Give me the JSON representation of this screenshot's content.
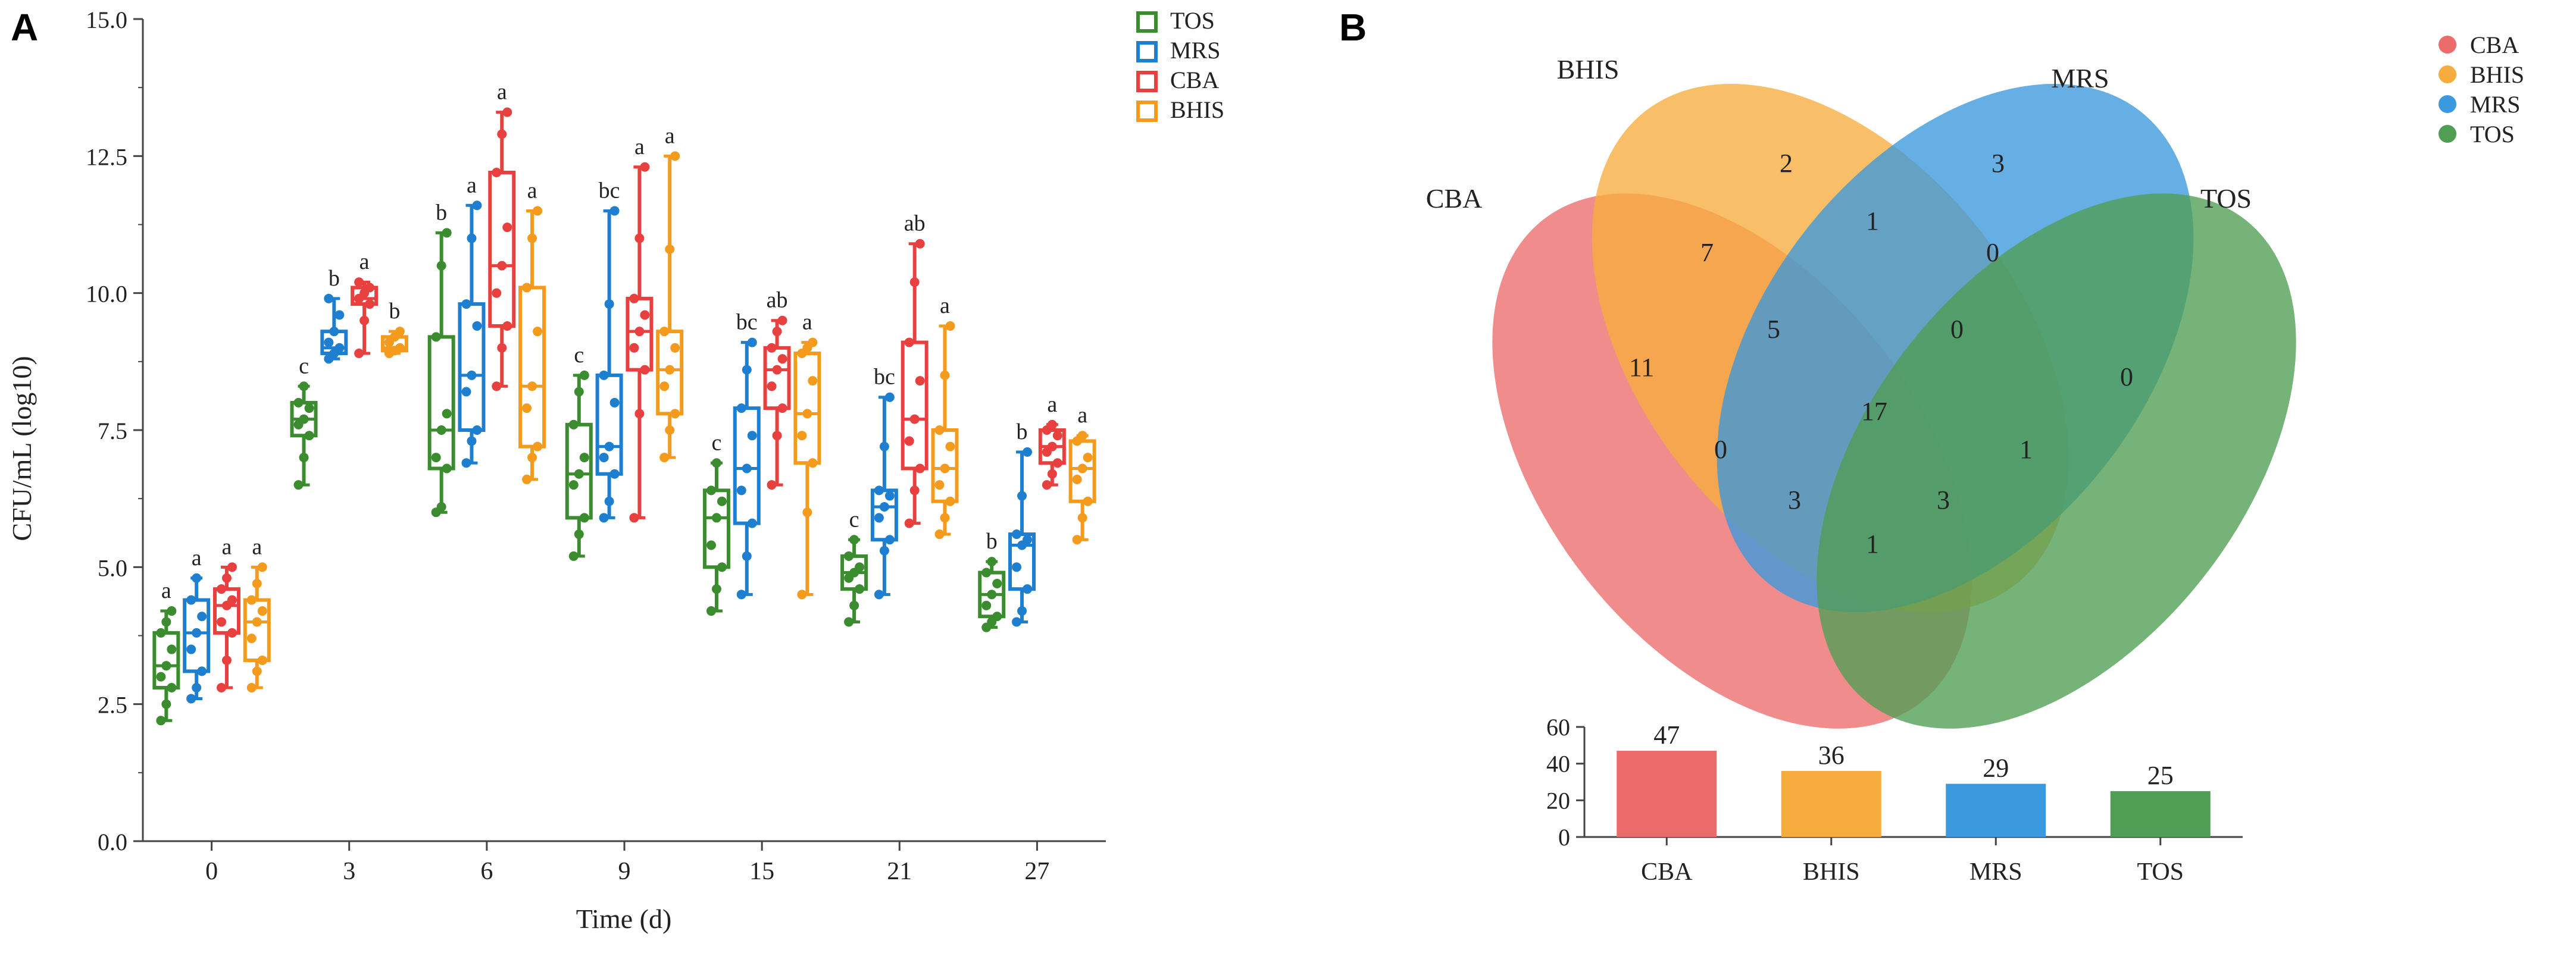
{
  "panels": {
    "a_label": "A",
    "b_label": "B"
  },
  "colors": {
    "TOS": "#3a8c2f",
    "MRS": "#1e7fd0",
    "CBA": "#e8403f",
    "BHIS": "#f49a1c",
    "venn_CBA": "#ec6b6b",
    "venn_BHIS": "#f6ad3d",
    "venn_MRS": "#3b99dd",
    "venn_TOS": "#4f9e53"
  },
  "chart_data": [
    {
      "id": "A",
      "type": "box",
      "title": "",
      "xlabel": "Time (d)",
      "ylabel": "CFU/mL (log10)",
      "ylim": [
        0,
        15
      ],
      "yticks": [
        "0.0",
        "2.5",
        "5.0",
        "7.5",
        "10.0",
        "12.5",
        "15.0"
      ],
      "categories": [
        "0",
        "3",
        "6",
        "9",
        "15",
        "21",
        "27"
      ],
      "legend": [
        "TOS",
        "MRS",
        "CBA",
        "BHIS"
      ],
      "legend_position": "top-right",
      "series": [
        {
          "name": "TOS",
          "boxes": [
            {
              "min": 2.2,
              "q1": 2.8,
              "median": 3.2,
              "q3": 3.8,
              "max": 4.2,
              "letter": "a",
              "points": [
                2.2,
                2.5,
                2.8,
                3.0,
                3.2,
                3.5,
                3.8,
                4.0,
                4.2
              ]
            },
            {
              "min": 6.5,
              "q1": 7.4,
              "median": 7.7,
              "q3": 8.0,
              "max": 8.3,
              "letter": "c",
              "points": [
                6.5,
                7.0,
                7.4,
                7.6,
                7.7,
                7.9,
                8.0,
                8.3
              ]
            },
            {
              "min": 6.0,
              "q1": 6.8,
              "median": 7.5,
              "q3": 9.2,
              "max": 11.1,
              "letter": "b",
              "points": [
                6.0,
                6.1,
                6.8,
                7.0,
                7.5,
                7.8,
                9.2,
                10.5,
                11.1
              ]
            },
            {
              "min": 5.2,
              "q1": 5.9,
              "median": 6.7,
              "q3": 7.6,
              "max": 8.5,
              "letter": "c",
              "points": [
                5.2,
                5.6,
                5.9,
                6.5,
                6.7,
                7.0,
                7.6,
                8.2,
                8.5
              ]
            },
            {
              "min": 4.2,
              "q1": 5.0,
              "median": 5.9,
              "q3": 6.4,
              "max": 6.9,
              "letter": "c",
              "points": [
                4.2,
                4.6,
                5.0,
                5.4,
                5.9,
                6.2,
                6.4,
                6.9
              ]
            },
            {
              "min": 4.0,
              "q1": 4.6,
              "median": 4.9,
              "q3": 5.2,
              "max": 5.5,
              "letter": "c",
              "points": [
                4.0,
                4.3,
                4.6,
                4.8,
                4.9,
                5.0,
                5.2,
                5.5
              ]
            },
            {
              "min": 3.9,
              "q1": 4.1,
              "median": 4.5,
              "q3": 4.9,
              "max": 5.1,
              "letter": "b",
              "points": [
                3.9,
                4.0,
                4.1,
                4.3,
                4.5,
                4.7,
                4.9,
                5.1
              ]
            }
          ]
        },
        {
          "name": "MRS",
          "boxes": [
            {
              "min": 2.6,
              "q1": 3.1,
              "median": 3.8,
              "q3": 4.4,
              "max": 4.8,
              "letter": "a",
              "points": [
                2.6,
                2.8,
                3.1,
                3.5,
                3.8,
                4.1,
                4.4,
                4.8
              ]
            },
            {
              "min": 8.8,
              "q1": 8.9,
              "median": 9.0,
              "q3": 9.3,
              "max": 9.9,
              "letter": "b",
              "points": [
                8.8,
                8.9,
                9.0,
                9.1,
                9.3,
                9.6,
                9.9
              ]
            },
            {
              "min": 6.9,
              "q1": 7.5,
              "median": 8.5,
              "q3": 9.8,
              "max": 11.6,
              "letter": "a",
              "points": [
                6.9,
                7.3,
                7.5,
                8.2,
                8.5,
                9.4,
                9.8,
                11.0,
                11.6
              ]
            },
            {
              "min": 5.9,
              "q1": 6.7,
              "median": 7.2,
              "q3": 8.5,
              "max": 11.5,
              "letter": "bc",
              "points": [
                5.9,
                6.2,
                6.7,
                7.0,
                7.2,
                8.0,
                8.5,
                9.8,
                11.5
              ]
            },
            {
              "min": 4.5,
              "q1": 5.8,
              "median": 6.8,
              "q3": 7.9,
              "max": 9.1,
              "letter": "bc",
              "points": [
                4.5,
                5.2,
                5.8,
                6.4,
                6.8,
                7.4,
                7.9,
                8.6,
                9.1
              ]
            },
            {
              "min": 4.5,
              "q1": 5.5,
              "median": 6.1,
              "q3": 6.4,
              "max": 8.1,
              "letter": "bc",
              "points": [
                4.5,
                5.3,
                5.5,
                5.9,
                6.1,
                6.3,
                6.4,
                7.2,
                8.1
              ]
            },
            {
              "min": 4.0,
              "q1": 4.6,
              "median": 5.4,
              "q3": 5.6,
              "max": 7.1,
              "letter": "b",
              "points": [
                4.0,
                4.2,
                4.6,
                5.0,
                5.4,
                5.5,
                5.6,
                6.3,
                7.1
              ]
            }
          ]
        },
        {
          "name": "CBA",
          "boxes": [
            {
              "min": 2.8,
              "q1": 3.8,
              "median": 4.3,
              "q3": 4.6,
              "max": 5.0,
              "letter": "a",
              "points": [
                2.8,
                3.3,
                3.8,
                4.0,
                4.3,
                4.4,
                4.6,
                4.8,
                5.0
              ]
            },
            {
              "min": 8.9,
              "q1": 9.8,
              "median": 9.9,
              "q3": 10.1,
              "max": 10.2,
              "letter": "a",
              "points": [
                8.9,
                9.5,
                9.8,
                9.9,
                10.0,
                10.1,
                10.2
              ]
            },
            {
              "min": 8.3,
              "q1": 9.4,
              "median": 10.5,
              "q3": 12.2,
              "max": 13.3,
              "letter": "a",
              "points": [
                8.3,
                9.0,
                9.4,
                10.0,
                10.5,
                11.2,
                12.2,
                12.9,
                13.3
              ]
            },
            {
              "min": 5.9,
              "q1": 8.6,
              "median": 9.3,
              "q3": 9.9,
              "max": 12.3,
              "letter": "a",
              "points": [
                5.9,
                7.8,
                8.6,
                9.0,
                9.3,
                9.6,
                9.9,
                11.0,
                12.3
              ]
            },
            {
              "min": 6.5,
              "q1": 7.9,
              "median": 8.6,
              "q3": 9.0,
              "max": 9.5,
              "letter": "ab",
              "points": [
                6.5,
                7.4,
                7.9,
                8.3,
                8.6,
                8.8,
                9.0,
                9.3,
                9.5
              ]
            },
            {
              "min": 5.8,
              "q1": 6.8,
              "median": 7.7,
              "q3": 9.1,
              "max": 10.9,
              "letter": "ab",
              "points": [
                5.8,
                6.4,
                6.8,
                7.3,
                7.7,
                8.4,
                9.1,
                10.2,
                10.9
              ]
            },
            {
              "min": 6.5,
              "q1": 6.9,
              "median": 7.2,
              "q3": 7.5,
              "max": 7.6,
              "letter": "a",
              "points": [
                6.5,
                6.7,
                6.9,
                7.1,
                7.2,
                7.4,
                7.5,
                7.6
              ]
            }
          ]
        },
        {
          "name": "BHIS",
          "boxes": [
            {
              "min": 2.8,
              "q1": 3.3,
              "median": 4.0,
              "q3": 4.4,
              "max": 5.0,
              "letter": "a",
              "points": [
                2.8,
                3.1,
                3.3,
                3.7,
                4.0,
                4.2,
                4.4,
                4.7,
                5.0
              ]
            },
            {
              "min": 8.9,
              "q1": 8.95,
              "median": 9.0,
              "q3": 9.2,
              "max": 9.3,
              "letter": "b",
              "points": [
                8.9,
                8.95,
                9.0,
                9.1,
                9.2,
                9.3
              ]
            },
            {
              "min": 6.6,
              "q1": 7.2,
              "median": 8.3,
              "q3": 10.1,
              "max": 11.5,
              "letter": "a",
              "points": [
                6.6,
                7.0,
                7.2,
                7.9,
                8.3,
                9.3,
                10.1,
                11.0,
                11.5
              ]
            },
            {
              "min": 7.0,
              "q1": 7.8,
              "median": 8.6,
              "q3": 9.3,
              "max": 12.5,
              "letter": "a",
              "points": [
                7.0,
                7.5,
                7.8,
                8.3,
                8.6,
                9.0,
                9.3,
                10.8,
                12.5
              ]
            },
            {
              "min": 4.5,
              "q1": 6.9,
              "median": 7.8,
              "q3": 8.9,
              "max": 9.1,
              "letter": "a",
              "points": [
                4.5,
                6.0,
                6.9,
                7.4,
                7.8,
                8.4,
                8.9,
                9.0,
                9.1
              ]
            },
            {
              "min": 5.6,
              "q1": 6.2,
              "median": 6.8,
              "q3": 7.5,
              "max": 9.4,
              "letter": "a",
              "points": [
                5.6,
                5.9,
                6.2,
                6.5,
                6.8,
                7.2,
                7.5,
                8.5,
                9.4
              ]
            },
            {
              "min": 5.5,
              "q1": 6.2,
              "median": 6.8,
              "q3": 7.3,
              "max": 7.4,
              "letter": "a",
              "points": [
                5.5,
                5.9,
                6.2,
                6.6,
                6.8,
                7.0,
                7.3,
                7.4
              ]
            }
          ]
        }
      ]
    },
    {
      "id": "B-venn",
      "type": "venn",
      "sets": [
        "CBA",
        "BHIS",
        "MRS",
        "TOS"
      ],
      "legend": [
        "CBA",
        "BHIS",
        "MRS",
        "TOS"
      ],
      "legend_position": "top-right",
      "regions": [
        {
          "sets": [
            "BHIS"
          ],
          "value": "2"
        },
        {
          "sets": [
            "MRS"
          ],
          "value": "3"
        },
        {
          "sets": [
            "BHIS",
            "MRS"
          ],
          "value": "1"
        },
        {
          "sets": [
            "CBA",
            "BHIS"
          ],
          "value": "7"
        },
        {
          "sets": [
            "MRS",
            "TOS"
          ],
          "value": "0"
        },
        {
          "sets": [
            "CBA",
            "BHIS",
            "MRS"
          ],
          "value": "5"
        },
        {
          "sets": [
            "BHIS",
            "MRS",
            "TOS"
          ],
          "value": "0"
        },
        {
          "sets": [
            "CBA"
          ],
          "value": "11"
        },
        {
          "sets": [
            "TOS"
          ],
          "value": "0"
        },
        {
          "sets": [
            "CBA",
            "BHIS",
            "MRS",
            "TOS"
          ],
          "value": "17"
        },
        {
          "sets": [
            "CBA",
            "MRS"
          ],
          "value": "0"
        },
        {
          "sets": [
            "BHIS",
            "TOS"
          ],
          "value": "1"
        },
        {
          "sets": [
            "CBA",
            "MRS",
            "TOS"
          ],
          "value": "3"
        },
        {
          "sets": [
            "CBA",
            "BHIS",
            "TOS"
          ],
          "value": "3"
        },
        {
          "sets": [
            "CBA",
            "TOS"
          ],
          "value": "1"
        }
      ]
    },
    {
      "id": "B-bar",
      "type": "bar",
      "title": "",
      "xlabel": "",
      "ylabel": "",
      "categories": [
        "CBA",
        "BHIS",
        "MRS",
        "TOS"
      ],
      "values": [
        47,
        36,
        29,
        25
      ],
      "ylim": [
        0,
        60
      ],
      "yticks": [
        "0",
        "20",
        "40",
        "60"
      ]
    }
  ]
}
